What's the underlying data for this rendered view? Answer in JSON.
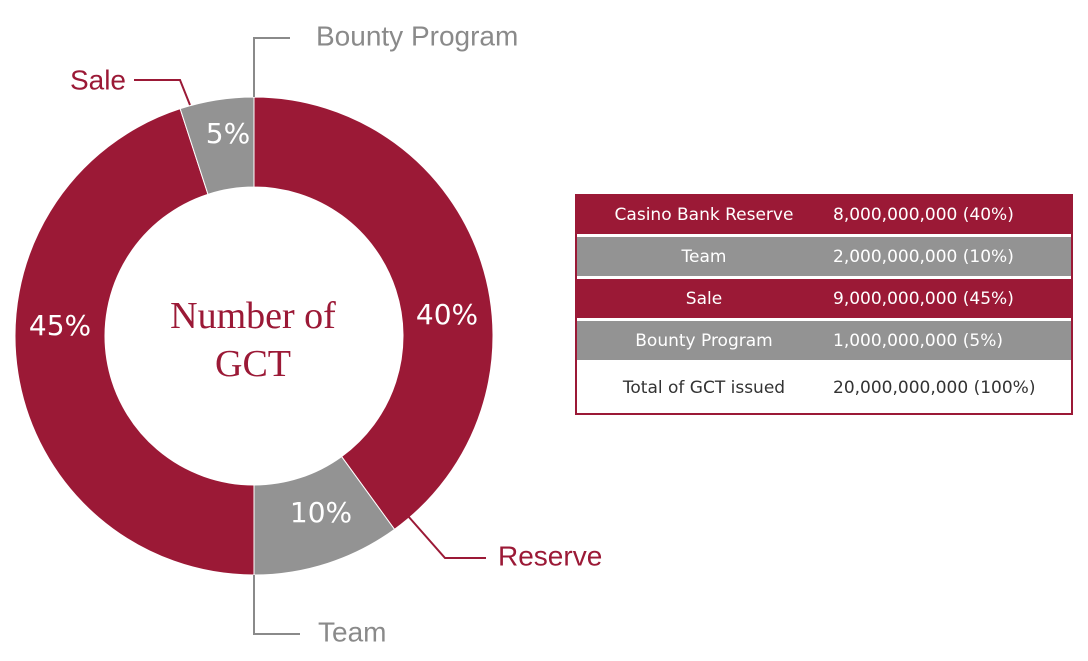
{
  "chart_data": {
    "type": "pie",
    "title": "Number of GCT",
    "slices": [
      {
        "label": "Reserve",
        "value": 40,
        "display": "40%",
        "color": "#9b1936"
      },
      {
        "label": "Team",
        "value": 10,
        "display": "10%",
        "color": "#939393"
      },
      {
        "label": "Sale",
        "value": 45,
        "display": "45%",
        "color": "#9b1936"
      },
      {
        "label": "Bounty Program",
        "value": 5,
        "display": "5%",
        "color": "#939393"
      }
    ],
    "callout_colors": {
      "Reserve": "#9b1936",
      "Team": "#8a8a8a",
      "Sale": "#9b1936",
      "Bounty Program": "#8a8a8a"
    }
  },
  "table": {
    "rows": [
      {
        "label": "Casino Bank Reserve",
        "amount": "8,000,000,000 (40%)",
        "bg": "#9b1936",
        "fg": "#ffffff"
      },
      {
        "label": "Team",
        "amount": "2,000,000,000 (10%)",
        "bg": "#939393",
        "fg": "#ffffff"
      },
      {
        "label": "Sale",
        "amount": "9,000,000,000 (45%)",
        "bg": "#9b1936",
        "fg": "#ffffff"
      },
      {
        "label": "Bounty Program",
        "amount": "1,000,000,000 (5%)",
        "bg": "#939393",
        "fg": "#ffffff"
      },
      {
        "label": "Total of GCT issued",
        "amount": "20,000,000,000 (100%)",
        "bg": "#ffffff",
        "fg": "#333333"
      }
    ]
  }
}
